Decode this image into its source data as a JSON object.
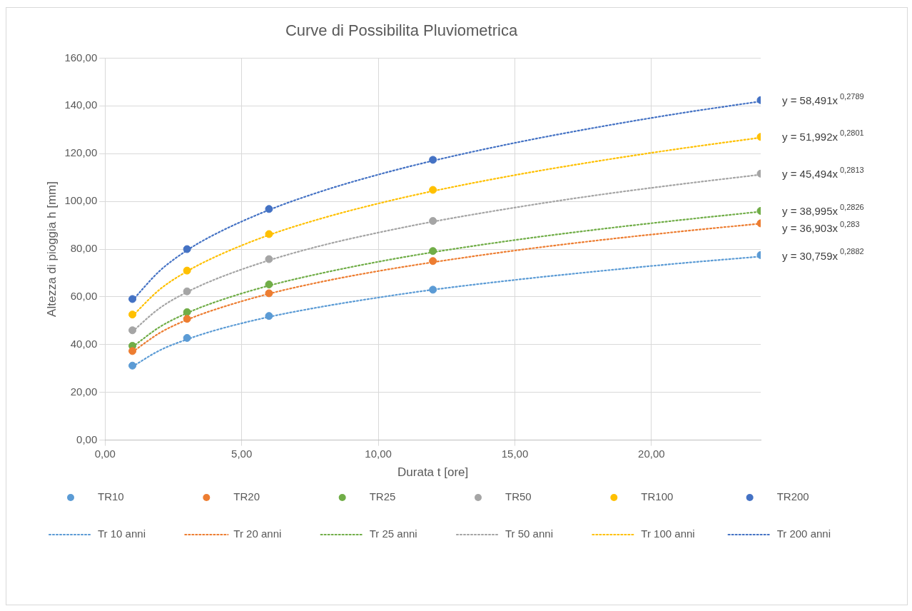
{
  "chart_data": {
    "type": "scatter",
    "title": "Curve di Possibilita Pluviometrica",
    "xlabel": "Durata t [ore]",
    "ylabel": "Altezza di pioggia h [mm]",
    "xlim": [
      0,
      24
    ],
    "xticks": [
      {
        "value": 0,
        "label": "0,00"
      },
      {
        "value": 5,
        "label": "5,00"
      },
      {
        "value": 10,
        "label": "10,00"
      },
      {
        "value": 15,
        "label": "15,00"
      },
      {
        "value": 20,
        "label": "20,00"
      }
    ],
    "ylim": [
      0,
      160
    ],
    "yticks": [
      {
        "value": 0,
        "label": "0,00"
      },
      {
        "value": 20,
        "label": "20,00"
      },
      {
        "value": 40,
        "label": "40,00"
      },
      {
        "value": 60,
        "label": "60,00"
      },
      {
        "value": 80,
        "label": "80,00"
      },
      {
        "value": 100,
        "label": "100,00"
      },
      {
        "value": 120,
        "label": "120,00"
      },
      {
        "value": 140,
        "label": "140,00"
      },
      {
        "value": 160,
        "label": "160,00"
      }
    ],
    "grid": true,
    "legend": "bottom",
    "marker": "circle",
    "series": [
      {
        "name": "TR10",
        "color": "#5b9bd5",
        "x": [
          1,
          3,
          6,
          12,
          24
        ],
        "values": [
          31.2,
          42.8,
          52.0,
          63.0,
          77.5
        ]
      },
      {
        "name": "TR20",
        "color": "#ed7d31",
        "x": [
          1,
          3,
          6,
          12,
          24
        ],
        "values": [
          37.3,
          50.8,
          61.5,
          75.0,
          90.8
        ]
      },
      {
        "name": "TR25",
        "color": "#70ad47",
        "x": [
          1,
          3,
          6,
          12,
          24
        ],
        "values": [
          39.5,
          53.6,
          65.2,
          79.2,
          96.0
        ]
      },
      {
        "name": "TR50",
        "color": "#a5a5a5",
        "x": [
          1,
          3,
          6,
          12,
          24
        ],
        "values": [
          46.0,
          62.3,
          75.8,
          91.8,
          111.6
        ]
      },
      {
        "name": "TR100",
        "color": "#ffc000",
        "x": [
          1,
          3,
          6,
          12,
          24
        ],
        "values": [
          52.6,
          71.0,
          86.3,
          104.8,
          127.0
        ]
      },
      {
        "name": "TR200",
        "color": "#4472c4",
        "x": [
          1,
          3,
          6,
          12,
          24
        ],
        "values": [
          59.1,
          80.0,
          96.8,
          117.4,
          142.4
        ]
      },
      {
        "name": "Tr 10 anni",
        "type": "line",
        "marker": "none",
        "line_style": "dotted",
        "color": "#5b9bd5",
        "x": [
          1,
          2,
          3,
          4,
          6,
          8,
          10,
          12,
          15,
          18,
          21,
          24
        ],
        "values": [
          30.8,
          37.6,
          42.2,
          45.9,
          51.6,
          56.0,
          59.7,
          63.0,
          67.1,
          70.7,
          74.0,
          76.9
        ]
      },
      {
        "name": "Tr 20 anni",
        "type": "line",
        "marker": "none",
        "line_style": "dotted",
        "color": "#ed7d31",
        "x": [
          1,
          2,
          3,
          4,
          6,
          8,
          10,
          12,
          15,
          18,
          21,
          24
        ],
        "values": [
          36.9,
          44.9,
          50.4,
          54.6,
          61.3,
          66.5,
          70.8,
          74.5,
          79.4,
          83.6,
          87.3,
          90.7
        ]
      },
      {
        "name": "Tr 25 anni",
        "type": "line",
        "marker": "none",
        "line_style": "dotted",
        "color": "#70ad47",
        "x": [
          1,
          2,
          3,
          4,
          6,
          8,
          10,
          12,
          15,
          18,
          21,
          24
        ],
        "values": [
          39.0,
          47.4,
          53.2,
          57.7,
          64.7,
          70.1,
          74.7,
          78.7,
          83.8,
          88.2,
          92.1,
          95.7
        ]
      },
      {
        "name": "Tr 50 anni",
        "type": "line",
        "marker": "none",
        "line_style": "dotted",
        "color": "#a5a5a5",
        "x": [
          1,
          2,
          3,
          4,
          6,
          8,
          10,
          12,
          15,
          18,
          21,
          24
        ],
        "values": [
          45.5,
          55.3,
          62.0,
          67.2,
          75.3,
          81.7,
          86.9,
          91.5,
          97.4,
          102.6,
          107.1,
          111.2
        ]
      },
      {
        "name": "Tr 100 anni",
        "type": "line",
        "marker": "none",
        "line_style": "dotted",
        "color": "#ffc000",
        "x": [
          1,
          2,
          3,
          4,
          6,
          8,
          10,
          12,
          15,
          18,
          21,
          24
        ],
        "values": [
          52.0,
          63.1,
          70.7,
          76.6,
          85.9,
          93.1,
          99.1,
          104.3,
          111.0,
          116.8,
          122.0,
          126.7
        ]
      },
      {
        "name": "Tr 200 anni",
        "type": "line",
        "marker": "none",
        "line_style": "dotted",
        "color": "#4472c4",
        "x": [
          1,
          2,
          3,
          4,
          6,
          8,
          10,
          12,
          15,
          18,
          21,
          24
        ],
        "values": [
          58.5,
          70.9,
          79.5,
          86.1,
          96.4,
          104.5,
          111.2,
          117.0,
          124.5,
          131.0,
          136.8,
          141.9
        ]
      }
    ],
    "annotations": [
      "y = 58,491x$^{0,2789}$",
      "y = 51,992x$^{0,2801}$",
      "y = 45,494x$^{0,2813}$",
      "y = 38,995x$^{0,2826}$",
      "y = 36,903x$^{0,283}$",
      "y = 30,759x$^{0,2882}$"
    ]
  }
}
